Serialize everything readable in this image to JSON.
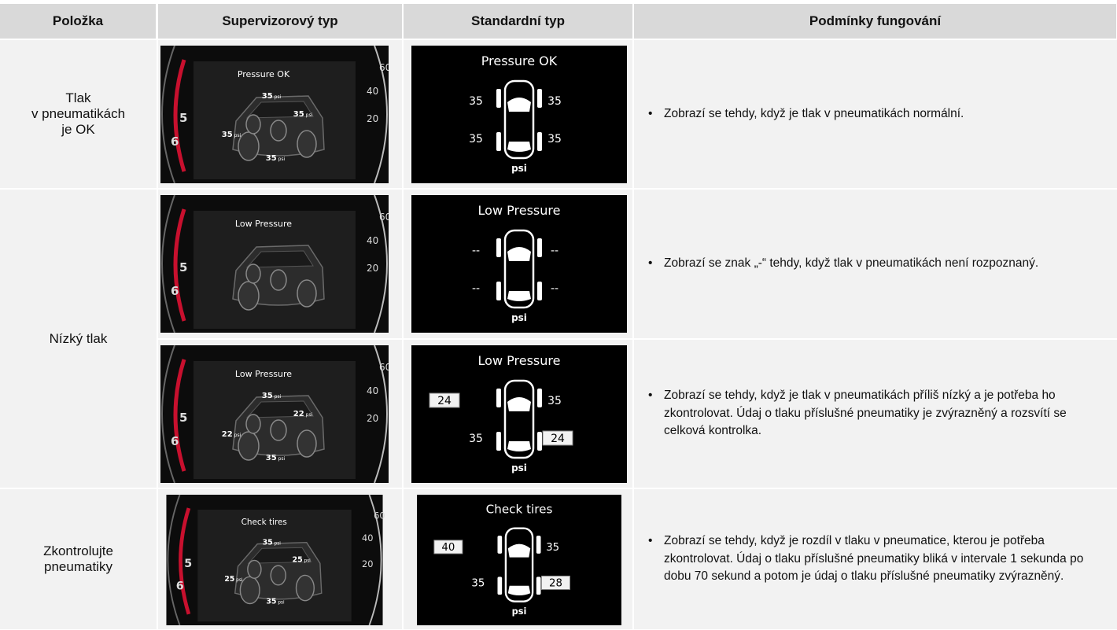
{
  "table": {
    "headers": [
      "Položka",
      "Supervizorový typ",
      "Standardní typ",
      "Podmínky fungování"
    ],
    "gauge": {
      "left": [
        "5",
        "6"
      ],
      "right": [
        "60",
        "40",
        "20"
      ]
    },
    "rows": [
      {
        "item": [
          "Tlak",
          "v pneumatikách",
          "je OK"
        ],
        "variants": [
          {
            "supervisory": {
              "title": "Pressure OK",
              "tires": [
                "35",
                "35",
                "35",
                "35"
              ],
              "unit": "psi"
            },
            "standard": {
              "title": "Pressure OK",
              "tires": [
                "35",
                "35",
                "35",
                "35"
              ],
              "highlighted": [
                false,
                false,
                false,
                false
              ],
              "unit": "psi"
            },
            "condition": "Zobrazí se tehdy, když je tlak v pneumatikách normální."
          }
        ]
      },
      {
        "item": [
          "Nízký tlak"
        ],
        "variants": [
          {
            "supervisory": {
              "title": "Low Pressure"
            },
            "standard": {
              "title": "Low Pressure",
              "tires": [
                "--",
                "--",
                "--",
                "--"
              ],
              "highlighted": [
                false,
                false,
                false,
                false
              ],
              "unit": "psi"
            },
            "condition": "Zobrazí se znak „-“ tehdy, když tlak v pneumatikách není rozpoznaný."
          },
          {
            "supervisory": {
              "title": "Low Pressure",
              "tires": [
                "35",
                "22",
                "22",
                "35"
              ],
              "unit": "psi"
            },
            "standard": {
              "title": "Low Pressure",
              "tires": [
                "24",
                "35",
                "35",
                "24"
              ],
              "highlighted": [
                true,
                false,
                false,
                true
              ],
              "unit": "psi"
            },
            "condition": "Zobrazí se tehdy, když je tlak v pneumatikách příliš nízký a je potřeba ho zkontrolovat. Údaj o tlaku příslušné pneumatiky je zvýrazněný a rozsvítí se celková kontrolka."
          }
        ]
      },
      {
        "item": [
          "Zkontrolujte",
          "pneumatiky"
        ],
        "variants": [
          {
            "supervisory": {
              "title": "Check tires",
              "tires": [
                "35",
                "25",
                "25",
                "35"
              ],
              "unit": "psi"
            },
            "standard": {
              "title": "Check tires",
              "tires": [
                "40",
                "35",
                "35",
                "28"
              ],
              "highlighted": [
                true,
                false,
                false,
                true
              ],
              "unit": "psi"
            },
            "condition": "Zobrazí se tehdy, když je rozdíl v tlaku v pneumatice, kterou je potřeba zkontrolovat. Údaj o tlaku příslušné pneumatiky bliká v intervale 1 sekunda po dobu 70 sekund a potom je údaj o tlaku příslušné pneumatiky zvýrazněný."
          }
        ]
      }
    ]
  }
}
